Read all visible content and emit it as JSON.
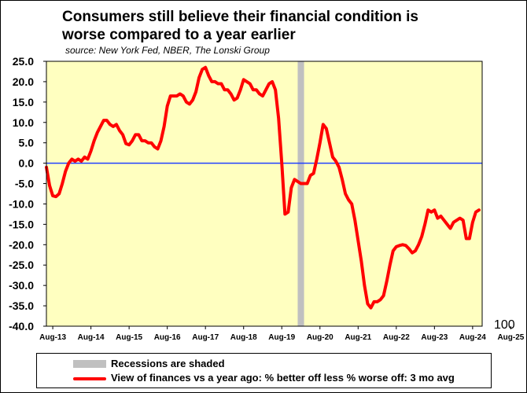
{
  "title_line1": "Consumers still believe their financial condition is",
  "title_line2": "worse compared to a year earlier",
  "source": "source: New York Fed, NBER, The Lonski Group",
  "extra_label": "100",
  "legend": {
    "recession": "Recessions are shaded",
    "series": "View of finances vs a year ago: % better off less % worse off: 3 mo avg"
  },
  "colors": {
    "plot_bg": "#ffffc0",
    "line": "#ff0000",
    "zero_line": "#2040ff",
    "recession": "#c0c0c0",
    "border": "#00ff00"
  },
  "chart_data": {
    "type": "line",
    "title": "Consumers still believe their financial condition is worse compared to a year earlier",
    "ylim": [
      -40,
      25
    ],
    "yticks": [
      "25.0",
      "20.0",
      "15.0",
      "10.0",
      "5.0",
      "0.0",
      "-5.0",
      "-10.0",
      "-15.0",
      "-20.0",
      "-25.0",
      "-30.0",
      "-35.0",
      "-40.0"
    ],
    "xticks": [
      "Aug-13",
      "Aug-14",
      "Aug-15",
      "Aug-16",
      "Aug-17",
      "Aug-18",
      "Aug-19",
      "Aug-20",
      "Aug-21",
      "Aug-22",
      "Aug-23",
      "Aug-24",
      "Aug-25"
    ],
    "recession": {
      "start_month": 79,
      "end_month": 81,
      "label": "Recessions are shaded"
    },
    "series": [
      {
        "name": "View of finances vs a year ago: % better off less % worse off: 3 mo avg",
        "x_start": "Jun-13",
        "values": [
          -1,
          -5.5,
          -8,
          -8.2,
          -7.5,
          -5,
          -2,
          0,
          1,
          0.5,
          1,
          0.5,
          1.5,
          1,
          3,
          5.5,
          7.5,
          9,
          10.5,
          10.5,
          9.5,
          9,
          9.5,
          8,
          7,
          4.8,
          4.5,
          5.5,
          7,
          7,
          5.5,
          5.5,
          5,
          5,
          4,
          3.5,
          5.5,
          9,
          14,
          16.5,
          16.5,
          16.5,
          17,
          16.5,
          15,
          14.5,
          15.5,
          17.5,
          21,
          23,
          23.5,
          21.5,
          20,
          20,
          19.5,
          19.5,
          18,
          18,
          17,
          15.5,
          16,
          18,
          20.5,
          20,
          19.5,
          18,
          18,
          17,
          16.5,
          18,
          19.5,
          20,
          18,
          11,
          0,
          -12.5,
          -12,
          -6,
          -4,
          -4.5,
          -5,
          -5,
          -5,
          -3,
          -2.5,
          1,
          5,
          9.5,
          8.5,
          5,
          1.5,
          0.5,
          -1,
          -4,
          -7.5,
          -9,
          -10,
          -14,
          -19,
          -24,
          -30,
          -34.5,
          -35.5,
          -34,
          -34,
          -33.5,
          -32.5,
          -29,
          -25,
          -21.5,
          -20.5,
          -20.2,
          -20,
          -20.2,
          -21,
          -22,
          -21.5,
          -20,
          -18,
          -15,
          -11.5,
          -12,
          -11.5,
          -13.5,
          -13,
          -14,
          -15,
          -16,
          -14.5,
          -14,
          -13.5,
          -14,
          -18.5,
          -18.5,
          -14.5,
          -12,
          -11.5
        ]
      }
    ]
  }
}
